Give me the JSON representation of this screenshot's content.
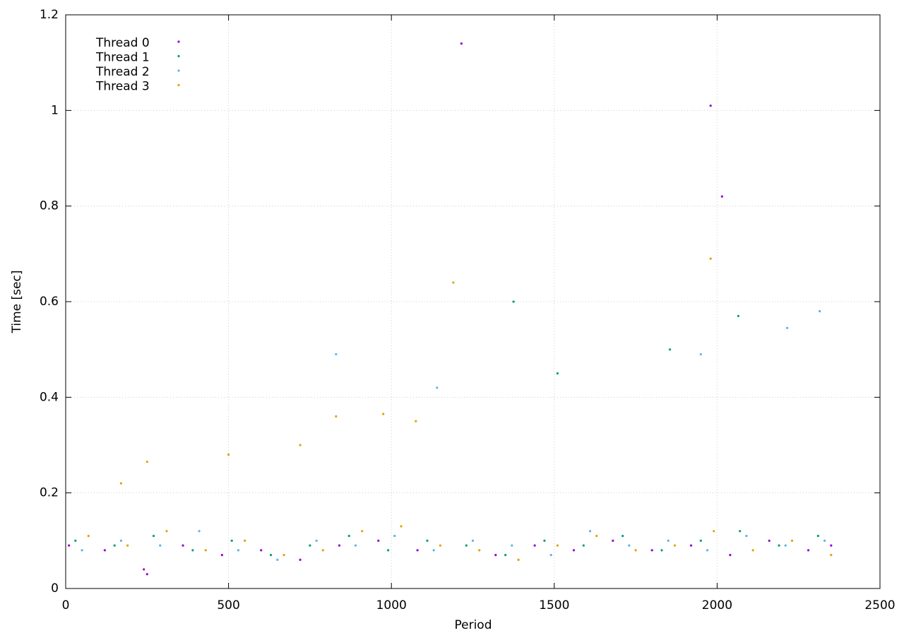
{
  "chart_data": {
    "type": "scatter",
    "xlabel": "Period",
    "ylabel": "Time [sec]",
    "xlim": [
      0,
      2500
    ],
    "xticks": [
      0,
      500,
      1000,
      1500,
      2000,
      2500
    ],
    "ylim": [
      0,
      1.2
    ],
    "yticks": [
      0,
      0.2,
      0.4,
      0.6,
      0.8,
      1,
      1.2
    ],
    "grid": true,
    "legend": "top-left",
    "series": [
      {
        "name": "Thread 0",
        "color": "#9400d3",
        "x": [
          10,
          120,
          240,
          250,
          360,
          480,
          600,
          720,
          840,
          960,
          1080,
          1215,
          1320,
          1440,
          1560,
          1680,
          1800,
          1920,
          2040,
          2160,
          2280,
          2350,
          1980,
          2015
        ],
        "values": [
          0.09,
          0.08,
          0.04,
          0.03,
          0.09,
          0.07,
          0.08,
          0.06,
          0.09,
          0.1,
          0.08,
          1.14,
          0.07,
          0.09,
          0.08,
          0.1,
          0.08,
          0.09,
          0.07,
          0.1,
          0.08,
          0.09,
          1.01,
          0.82
        ]
      },
      {
        "name": "Thread 1",
        "color": "#009e73",
        "x": [
          30,
          150,
          270,
          390,
          510,
          630,
          750,
          870,
          990,
          1110,
          1230,
          1350,
          1375,
          1470,
          1590,
          1710,
          1830,
          1950,
          2070,
          2190,
          2310,
          2065,
          1855,
          1510
        ],
        "values": [
          0.1,
          0.09,
          0.11,
          0.08,
          0.1,
          0.07,
          0.09,
          0.11,
          0.08,
          0.1,
          0.09,
          0.07,
          0.6,
          0.1,
          0.09,
          0.11,
          0.08,
          0.1,
          0.12,
          0.09,
          0.11,
          0.57,
          0.5,
          0.45
        ]
      },
      {
        "name": "Thread 2",
        "color": "#56b4e9",
        "x": [
          50,
          170,
          290,
          410,
          530,
          650,
          770,
          890,
          1010,
          1130,
          1250,
          1370,
          1490,
          1610,
          1730,
          1850,
          1970,
          2090,
          2210,
          2330,
          2315,
          2215,
          1950,
          830,
          1140
        ],
        "values": [
          0.08,
          0.1,
          0.09,
          0.12,
          0.08,
          0.06,
          0.1,
          0.09,
          0.11,
          0.08,
          0.1,
          0.09,
          0.07,
          0.12,
          0.09,
          0.1,
          0.08,
          0.11,
          0.09,
          0.1,
          0.58,
          0.545,
          0.49,
          0.49,
          0.42
        ]
      },
      {
        "name": "Thread 3",
        "color": "#e69f00",
        "x": [
          70,
          190,
          310,
          430,
          550,
          670,
          790,
          910,
          1030,
          1150,
          1270,
          1390,
          1510,
          1630,
          1750,
          1870,
          1990,
          2110,
          2230,
          2350,
          1190,
          1980,
          975,
          830,
          1075,
          720,
          500,
          250,
          170
        ],
        "values": [
          0.11,
          0.09,
          0.12,
          0.08,
          0.1,
          0.07,
          0.08,
          0.12,
          0.13,
          0.09,
          0.08,
          0.06,
          0.09,
          0.11,
          0.08,
          0.09,
          0.12,
          0.08,
          0.1,
          0.07,
          0.64,
          0.69,
          0.365,
          0.36,
          0.35,
          0.3,
          0.28,
          0.265,
          0.22
        ]
      }
    ]
  }
}
